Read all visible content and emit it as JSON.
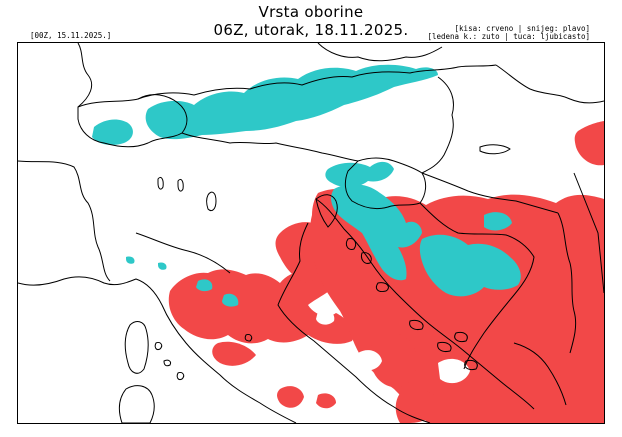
{
  "header": {
    "title": "Vrsta oborine",
    "subtitle": "06Z, utorak, 18.11.2025.",
    "run_label": "[00Z, 15.11.2025.]",
    "legend_line1": "[kisa: crveno | snijeg: plavo]",
    "legend_line2": "[ledena k.: zuto | tuca: ljubicasto]"
  },
  "colors": {
    "rain": "#f24848",
    "snow": "#2ec8c8",
    "borders": "#000000"
  }
}
